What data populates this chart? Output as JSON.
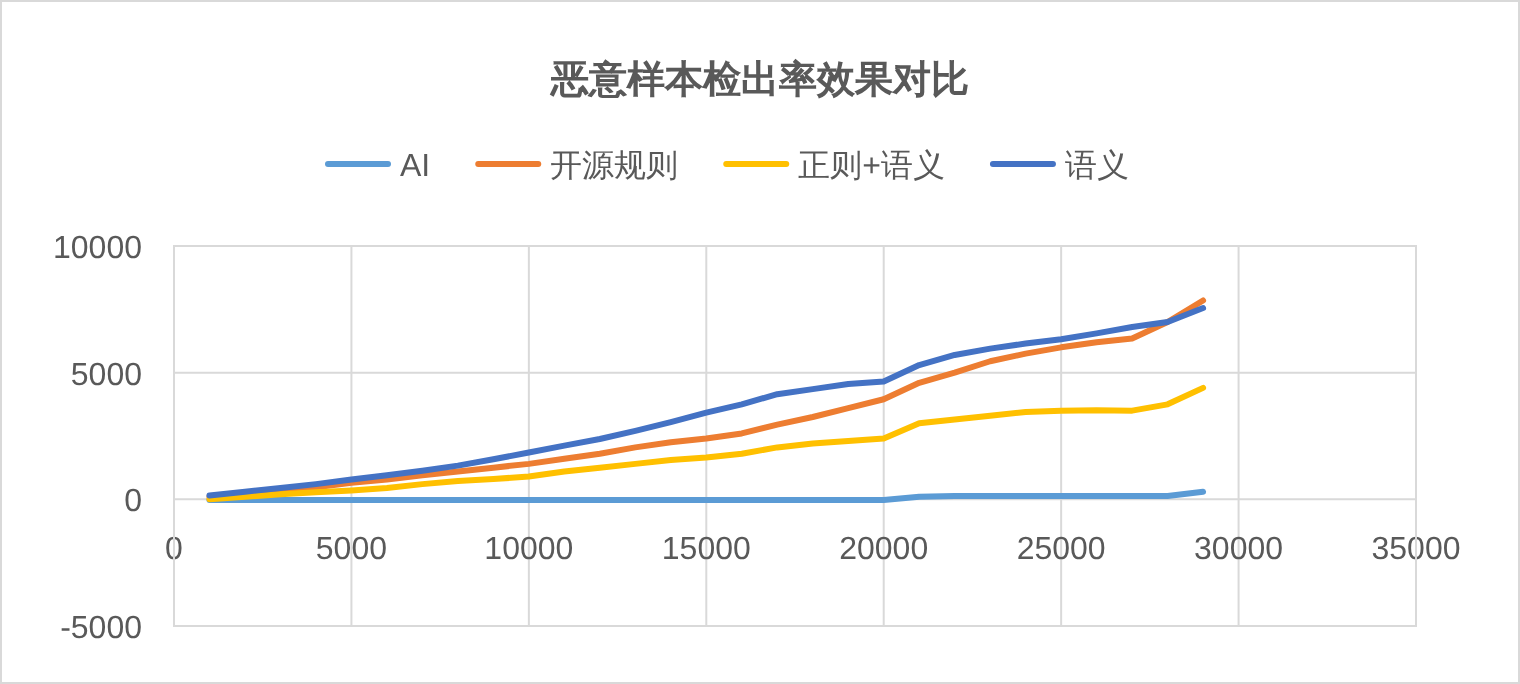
{
  "chart_data": {
    "type": "line",
    "title": "恶意样本检出率效果对比",
    "x": [
      1000,
      2000,
      3000,
      4000,
      5000,
      6000,
      7000,
      8000,
      9000,
      10000,
      11000,
      12000,
      13000,
      14000,
      15000,
      16000,
      17000,
      18000,
      19000,
      20000,
      21000,
      22000,
      23000,
      24000,
      25000,
      26000,
      27000,
      28000,
      29000
    ],
    "series": [
      {
        "name": "AI",
        "color": "#5b9bd5",
        "values": [
          -30,
          -30,
          -30,
          -30,
          -30,
          -30,
          -30,
          -30,
          -30,
          -30,
          -30,
          -30,
          -30,
          -30,
          -30,
          -30,
          -30,
          -30,
          -30,
          -30,
          100,
          130,
          130,
          130,
          130,
          130,
          130,
          130,
          300
        ]
      },
      {
        "name": "开源规则",
        "color": "#ed7d31",
        "values": [
          100,
          220,
          350,
          480,
          650,
          780,
          950,
          1100,
          1250,
          1400,
          1600,
          1800,
          2050,
          2250,
          2400,
          2600,
          2950,
          3250,
          3600,
          3950,
          4600,
          5000,
          5450,
          5750,
          6000,
          6200,
          6350,
          7000,
          7850
        ]
      },
      {
        "name": "正则+语义",
        "color": "#ffc000",
        "values": [
          0,
          100,
          200,
          280,
          350,
          450,
          600,
          720,
          800,
          900,
          1100,
          1250,
          1400,
          1550,
          1650,
          1800,
          2050,
          2200,
          2300,
          2400,
          3000,
          3150,
          3300,
          3450,
          3500,
          3520,
          3500,
          3750,
          4400
        ]
      },
      {
        "name": "语义",
        "color": "#4472c4",
        "values": [
          150,
          300,
          450,
          600,
          780,
          950,
          1130,
          1330,
          1580,
          1850,
          2120,
          2380,
          2700,
          3050,
          3420,
          3750,
          4150,
          4350,
          4550,
          4650,
          5300,
          5700,
          5950,
          6150,
          6320,
          6550,
          6800,
          7000,
          7550
        ]
      }
    ],
    "xlim": [
      0,
      35000
    ],
    "xticks": [
      0,
      5000,
      10000,
      15000,
      20000,
      25000,
      30000,
      35000
    ],
    "ylim": [
      -5000,
      10000
    ],
    "yticks": [
      -5000,
      0,
      5000,
      10000
    ],
    "grid": true,
    "legend": "top"
  }
}
